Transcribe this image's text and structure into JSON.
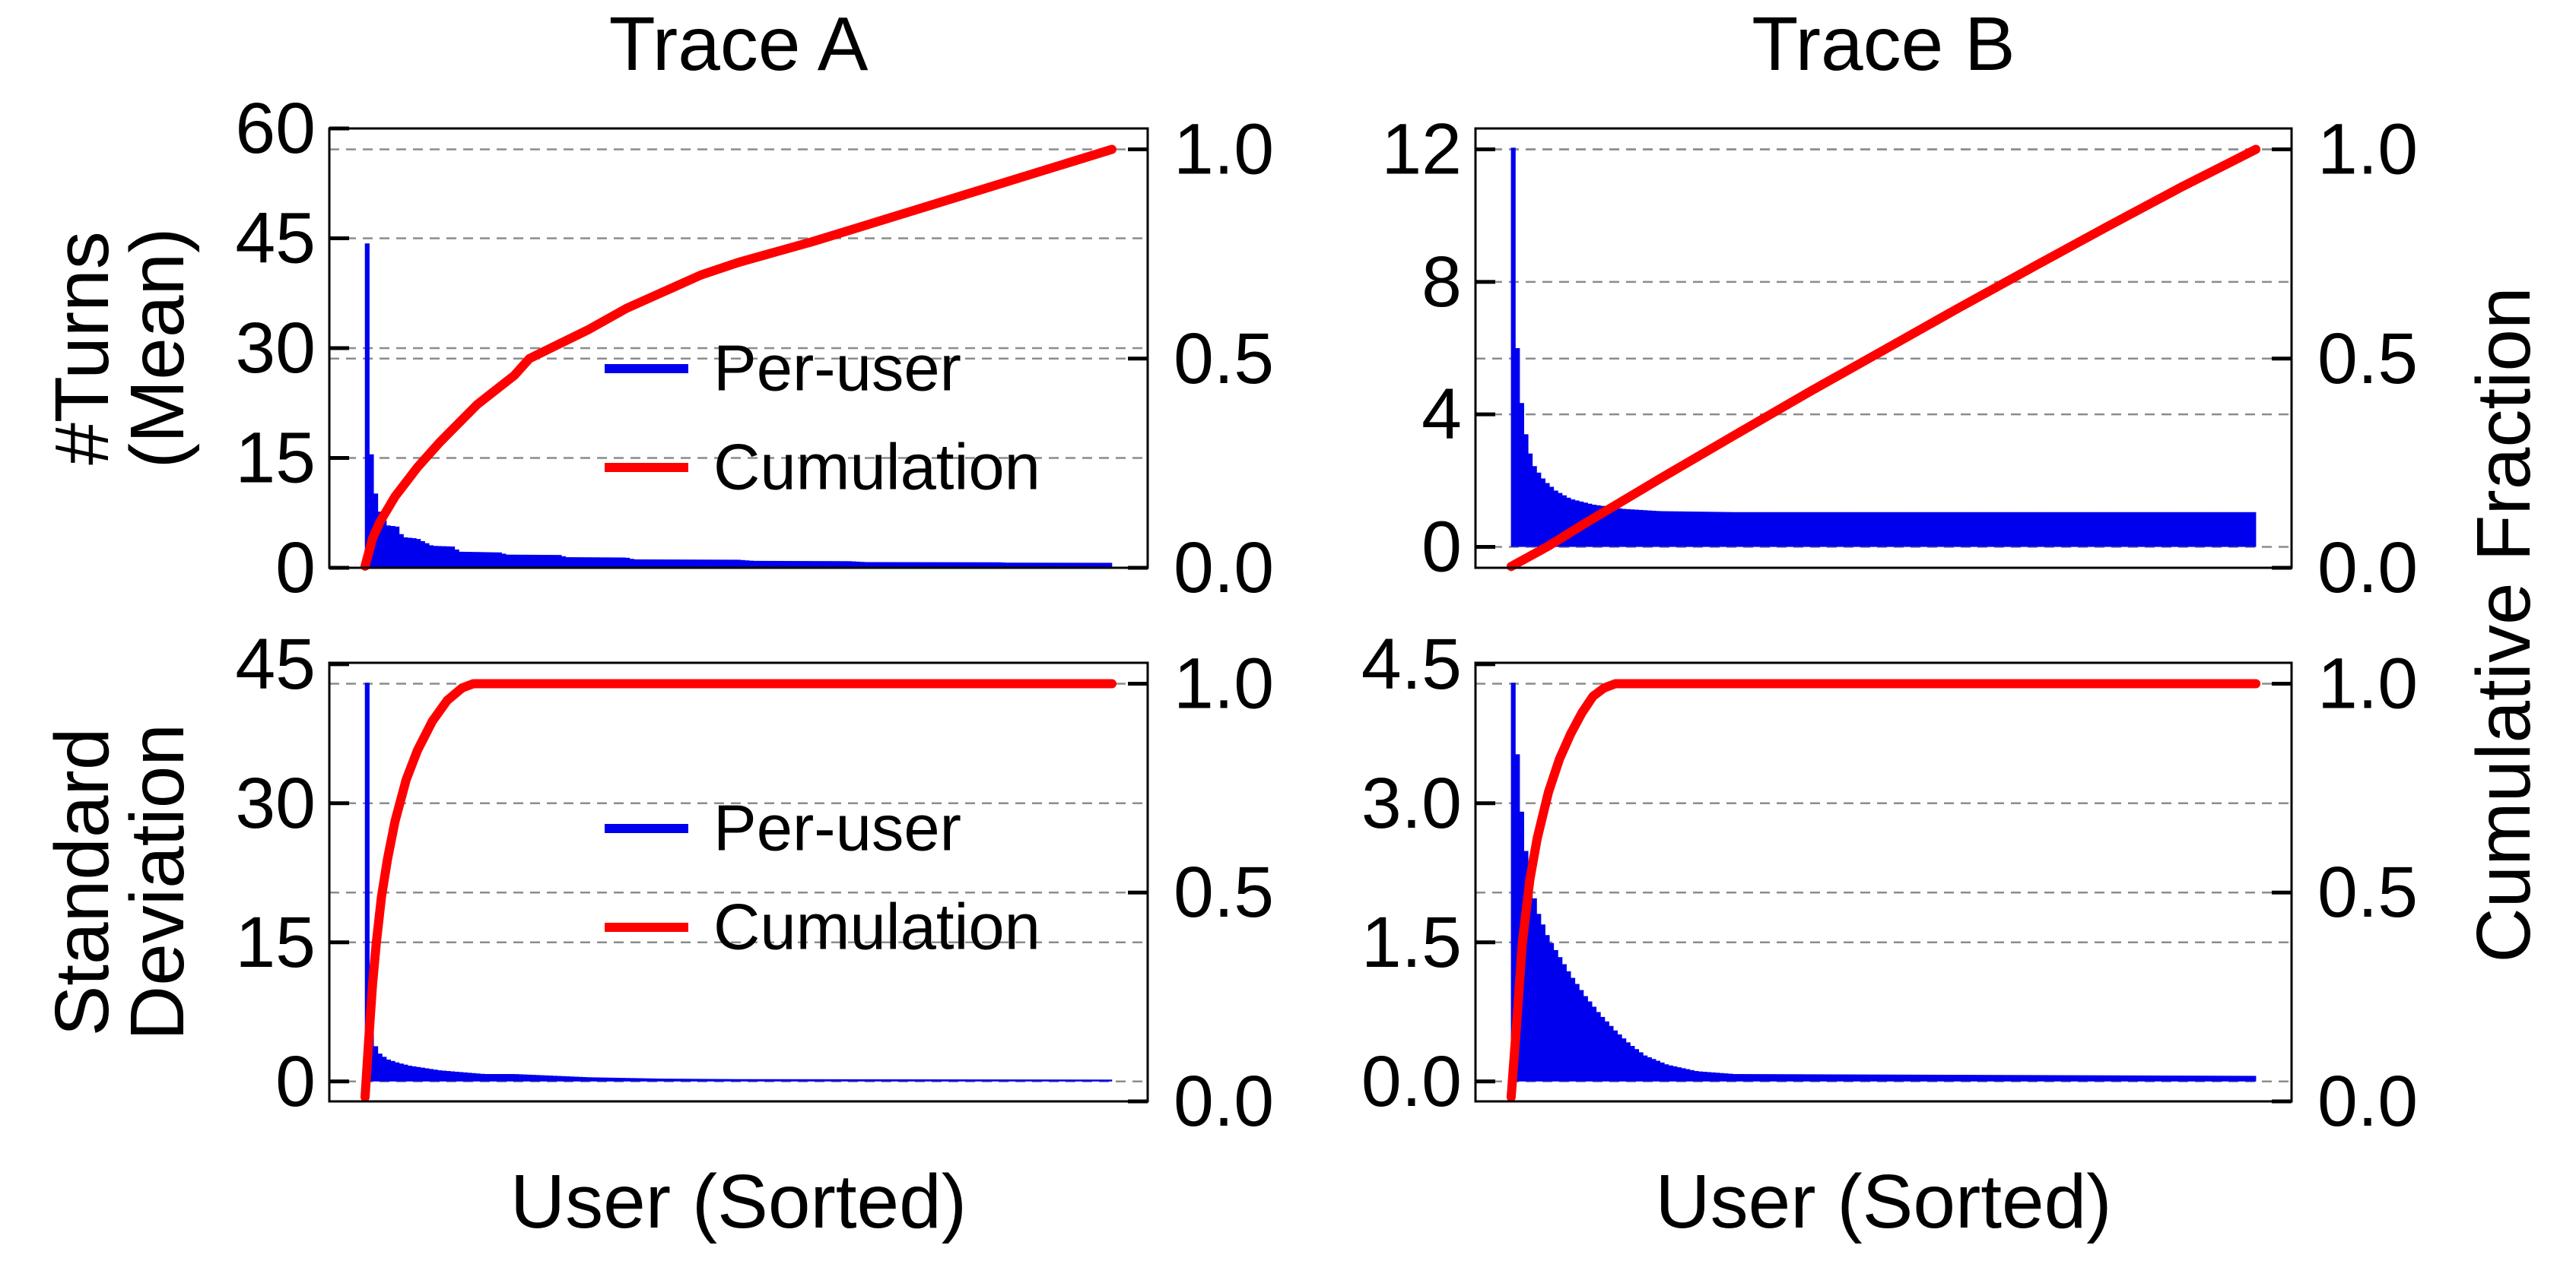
{
  "figure": {
    "background": "#ffffff",
    "right_axis_label": "Cumulative Fraction",
    "xlabel": "User (Sorted)"
  },
  "colors": {
    "per_user": "#0000ee",
    "cumulation": "#ff0000",
    "grid": "#8c8c8c",
    "axis": "#000000",
    "text": "#000000"
  },
  "legend": {
    "items": [
      {
        "label": "Per-user",
        "color_key": "per_user"
      },
      {
        "label": "Cumulation",
        "color_key": "cumulation"
      }
    ]
  },
  "right_axis": {
    "label": "Cumulative Fraction",
    "ticks": [
      {
        "v": 0.0,
        "label": "0.0"
      },
      {
        "v": 0.5,
        "label": "0.5"
      },
      {
        "v": 1.0,
        "label": "1.0"
      }
    ],
    "max": 1.05
  },
  "chart_data": [
    {
      "id": "trace-a-mean",
      "type": "bar",
      "title": "Trace A",
      "ylabel_lines": [
        "#Turns",
        "(Mean)"
      ],
      "xlabel": "",
      "row": 0,
      "col": 0,
      "show_legend": true,
      "ylim": [
        0,
        60
      ],
      "yticks": [
        {
          "v": 0,
          "label": "0"
        },
        {
          "v": 15,
          "label": "15"
        },
        {
          "v": 30,
          "label": "30"
        },
        {
          "v": 45,
          "label": "45"
        },
        {
          "v": 60,
          "label": "60"
        }
      ],
      "series": [
        {
          "name": "Per-user",
          "type": "bar",
          "axis": "left",
          "envelope": [
            [
              0,
              44.3
            ],
            [
              0.0045,
              44.3
            ],
            [
              0.006,
              20
            ],
            [
              0.01,
              13
            ],
            [
              0.016,
              9
            ],
            [
              0.022,
              7
            ],
            [
              0.03,
              5.8
            ],
            [
              0.045,
              5.6
            ],
            [
              0.05,
              4.2
            ],
            [
              0.07,
              4.0
            ],
            [
              0.09,
              3.0
            ],
            [
              0.12,
              2.9
            ],
            [
              0.125,
              2.2
            ],
            [
              0.18,
              2.1
            ],
            [
              0.19,
              1.8
            ],
            [
              0.26,
              1.75
            ],
            [
              0.27,
              1.45
            ],
            [
              0.35,
              1.4
            ],
            [
              0.36,
              1.15
            ],
            [
              0.5,
              1.1
            ],
            [
              0.52,
              0.95
            ],
            [
              0.65,
              0.9
            ],
            [
              0.67,
              0.78
            ],
            [
              0.85,
              0.75
            ],
            [
              0.86,
              0.7
            ],
            [
              1,
              0.68
            ]
          ]
        },
        {
          "name": "Cumulation",
          "type": "line",
          "axis": "right",
          "points": [
            [
              0,
              0.004
            ],
            [
              0.01,
              0.07
            ],
            [
              0.02,
              0.11
            ],
            [
              0.04,
              0.17
            ],
            [
              0.07,
              0.24
            ],
            [
              0.1,
              0.3
            ],
            [
              0.15,
              0.39
            ],
            [
              0.2,
              0.46
            ],
            [
              0.22,
              0.5
            ],
            [
              0.3,
              0.57
            ],
            [
              0.35,
              0.62
            ],
            [
              0.4,
              0.66
            ],
            [
              0.45,
              0.7
            ],
            [
              0.5,
              0.73
            ],
            [
              0.55,
              0.755
            ],
            [
              0.6,
              0.78
            ],
            [
              0.7,
              0.835
            ],
            [
              0.8,
              0.89
            ],
            [
              0.9,
              0.945
            ],
            [
              1,
              1.0
            ]
          ]
        }
      ]
    },
    {
      "id": "trace-b-mean",
      "type": "bar",
      "title": "Trace B",
      "ylabel_lines": [],
      "xlabel": "",
      "row": 0,
      "col": 1,
      "show_legend": false,
      "ylim": [
        -0.63,
        12.63
      ],
      "yticks": [
        {
          "v": 0,
          "label": "0"
        },
        {
          "v": 4,
          "label": "4"
        },
        {
          "v": 8,
          "label": "8"
        },
        {
          "v": 12,
          "label": "12"
        }
      ],
      "series": [
        {
          "name": "Per-user",
          "type": "bar",
          "axis": "left",
          "envelope": [
            [
              0,
              12.05
            ],
            [
              0.003,
              12.05
            ],
            [
              0.005,
              8.2
            ],
            [
              0.008,
              6.2
            ],
            [
              0.012,
              4.8
            ],
            [
              0.017,
              3.8
            ],
            [
              0.023,
              3.0
            ],
            [
              0.032,
              2.4
            ],
            [
              0.045,
              2.0
            ],
            [
              0.06,
              1.7
            ],
            [
              0.08,
              1.45
            ],
            [
              0.11,
              1.28
            ],
            [
              0.15,
              1.15
            ],
            [
              0.2,
              1.08
            ],
            [
              0.3,
              1.05
            ],
            [
              1,
              1.05
            ]
          ]
        },
        {
          "name": "Cumulation",
          "type": "line",
          "axis": "right",
          "points": [
            [
              0,
              0.003
            ],
            [
              0.05,
              0.052
            ],
            [
              0.1,
              0.107
            ],
            [
              0.2,
              0.213
            ],
            [
              0.3,
              0.317
            ],
            [
              0.4,
              0.42
            ],
            [
              0.5,
              0.52
            ],
            [
              0.6,
              0.62
            ],
            [
              0.7,
              0.718
            ],
            [
              0.8,
              0.815
            ],
            [
              0.9,
              0.91
            ],
            [
              1,
              1.0
            ]
          ]
        }
      ]
    },
    {
      "id": "trace-a-std",
      "type": "bar",
      "title": "",
      "ylabel_lines": [
        "Standard",
        "Deviation"
      ],
      "xlabel": "User (Sorted)",
      "row": 1,
      "col": 0,
      "show_legend": true,
      "ylim": [
        -2.15,
        45.15
      ],
      "yticks": [
        {
          "v": 0,
          "label": "0"
        },
        {
          "v": 15,
          "label": "15"
        },
        {
          "v": 30,
          "label": "30"
        },
        {
          "v": 45,
          "label": "45"
        }
      ],
      "series": [
        {
          "name": "Per-user",
          "type": "bar",
          "axis": "left",
          "envelope": [
            [
              0,
              43
            ],
            [
              0.004,
              43
            ],
            [
              0.006,
              8
            ],
            [
              0.01,
              5
            ],
            [
              0.015,
              3.6
            ],
            [
              0.02,
              3.0
            ],
            [
              0.03,
              2.4
            ],
            [
              0.045,
              2.0
            ],
            [
              0.06,
              1.7
            ],
            [
              0.08,
              1.45
            ],
            [
              0.1,
              1.2
            ],
            [
              0.13,
              1.0
            ],
            [
              0.16,
              0.8
            ],
            [
              0.2,
              0.8
            ],
            [
              0.3,
              0.45
            ],
            [
              0.4,
              0.3
            ],
            [
              0.5,
              0.25
            ],
            [
              1,
              0.2
            ]
          ]
        },
        {
          "name": "Cumulation",
          "type": "line",
          "axis": "right",
          "points": [
            [
              0,
              0.01
            ],
            [
              0.005,
              0.15
            ],
            [
              0.01,
              0.28
            ],
            [
              0.015,
              0.38
            ],
            [
              0.022,
              0.49
            ],
            [
              0.03,
              0.58
            ],
            [
              0.04,
              0.67
            ],
            [
              0.055,
              0.77
            ],
            [
              0.07,
              0.84
            ],
            [
              0.09,
              0.91
            ],
            [
              0.11,
              0.96
            ],
            [
              0.13,
              0.99
            ],
            [
              0.145,
              1.0
            ],
            [
              1,
              1.0
            ]
          ]
        }
      ]
    },
    {
      "id": "trace-b-std",
      "type": "bar",
      "title": "",
      "ylabel_lines": [],
      "xlabel": "User (Sorted)",
      "row": 1,
      "col": 1,
      "show_legend": false,
      "ylim": [
        -0.215,
        4.515
      ],
      "yticks": [
        {
          "v": 0.0,
          "label": "0.0"
        },
        {
          "v": 1.5,
          "label": "1.5"
        },
        {
          "v": 3.0,
          "label": "3.0"
        },
        {
          "v": 4.5,
          "label": "4.5"
        }
      ],
      "series": [
        {
          "name": "Per-user",
          "type": "bar",
          "axis": "left",
          "envelope": [
            [
              0,
              4.3
            ],
            [
              0.005,
              4.3
            ],
            [
              0.008,
              3.6
            ],
            [
              0.012,
              3.1
            ],
            [
              0.018,
              2.6
            ],
            [
              0.025,
              2.2
            ],
            [
              0.035,
              1.85
            ],
            [
              0.05,
              1.55
            ],
            [
              0.065,
              1.35
            ],
            [
              0.08,
              1.15
            ],
            [
              0.1,
              0.92
            ],
            [
              0.12,
              0.72
            ],
            [
              0.14,
              0.55
            ],
            [
              0.16,
              0.4
            ],
            [
              0.18,
              0.28
            ],
            [
              0.21,
              0.18
            ],
            [
              0.25,
              0.11
            ],
            [
              0.3,
              0.08
            ],
            [
              1,
              0.06
            ]
          ]
        },
        {
          "name": "Cumulation",
          "type": "line",
          "axis": "right",
          "points": [
            [
              0,
              0.01
            ],
            [
              0.008,
              0.2
            ],
            [
              0.015,
              0.38
            ],
            [
              0.025,
              0.53
            ],
            [
              0.035,
              0.63
            ],
            [
              0.05,
              0.74
            ],
            [
              0.065,
              0.82
            ],
            [
              0.08,
              0.88
            ],
            [
              0.095,
              0.93
            ],
            [
              0.11,
              0.97
            ],
            [
              0.125,
              0.99
            ],
            [
              0.14,
              1.0
            ],
            [
              1,
              1.0
            ]
          ]
        }
      ]
    }
  ]
}
